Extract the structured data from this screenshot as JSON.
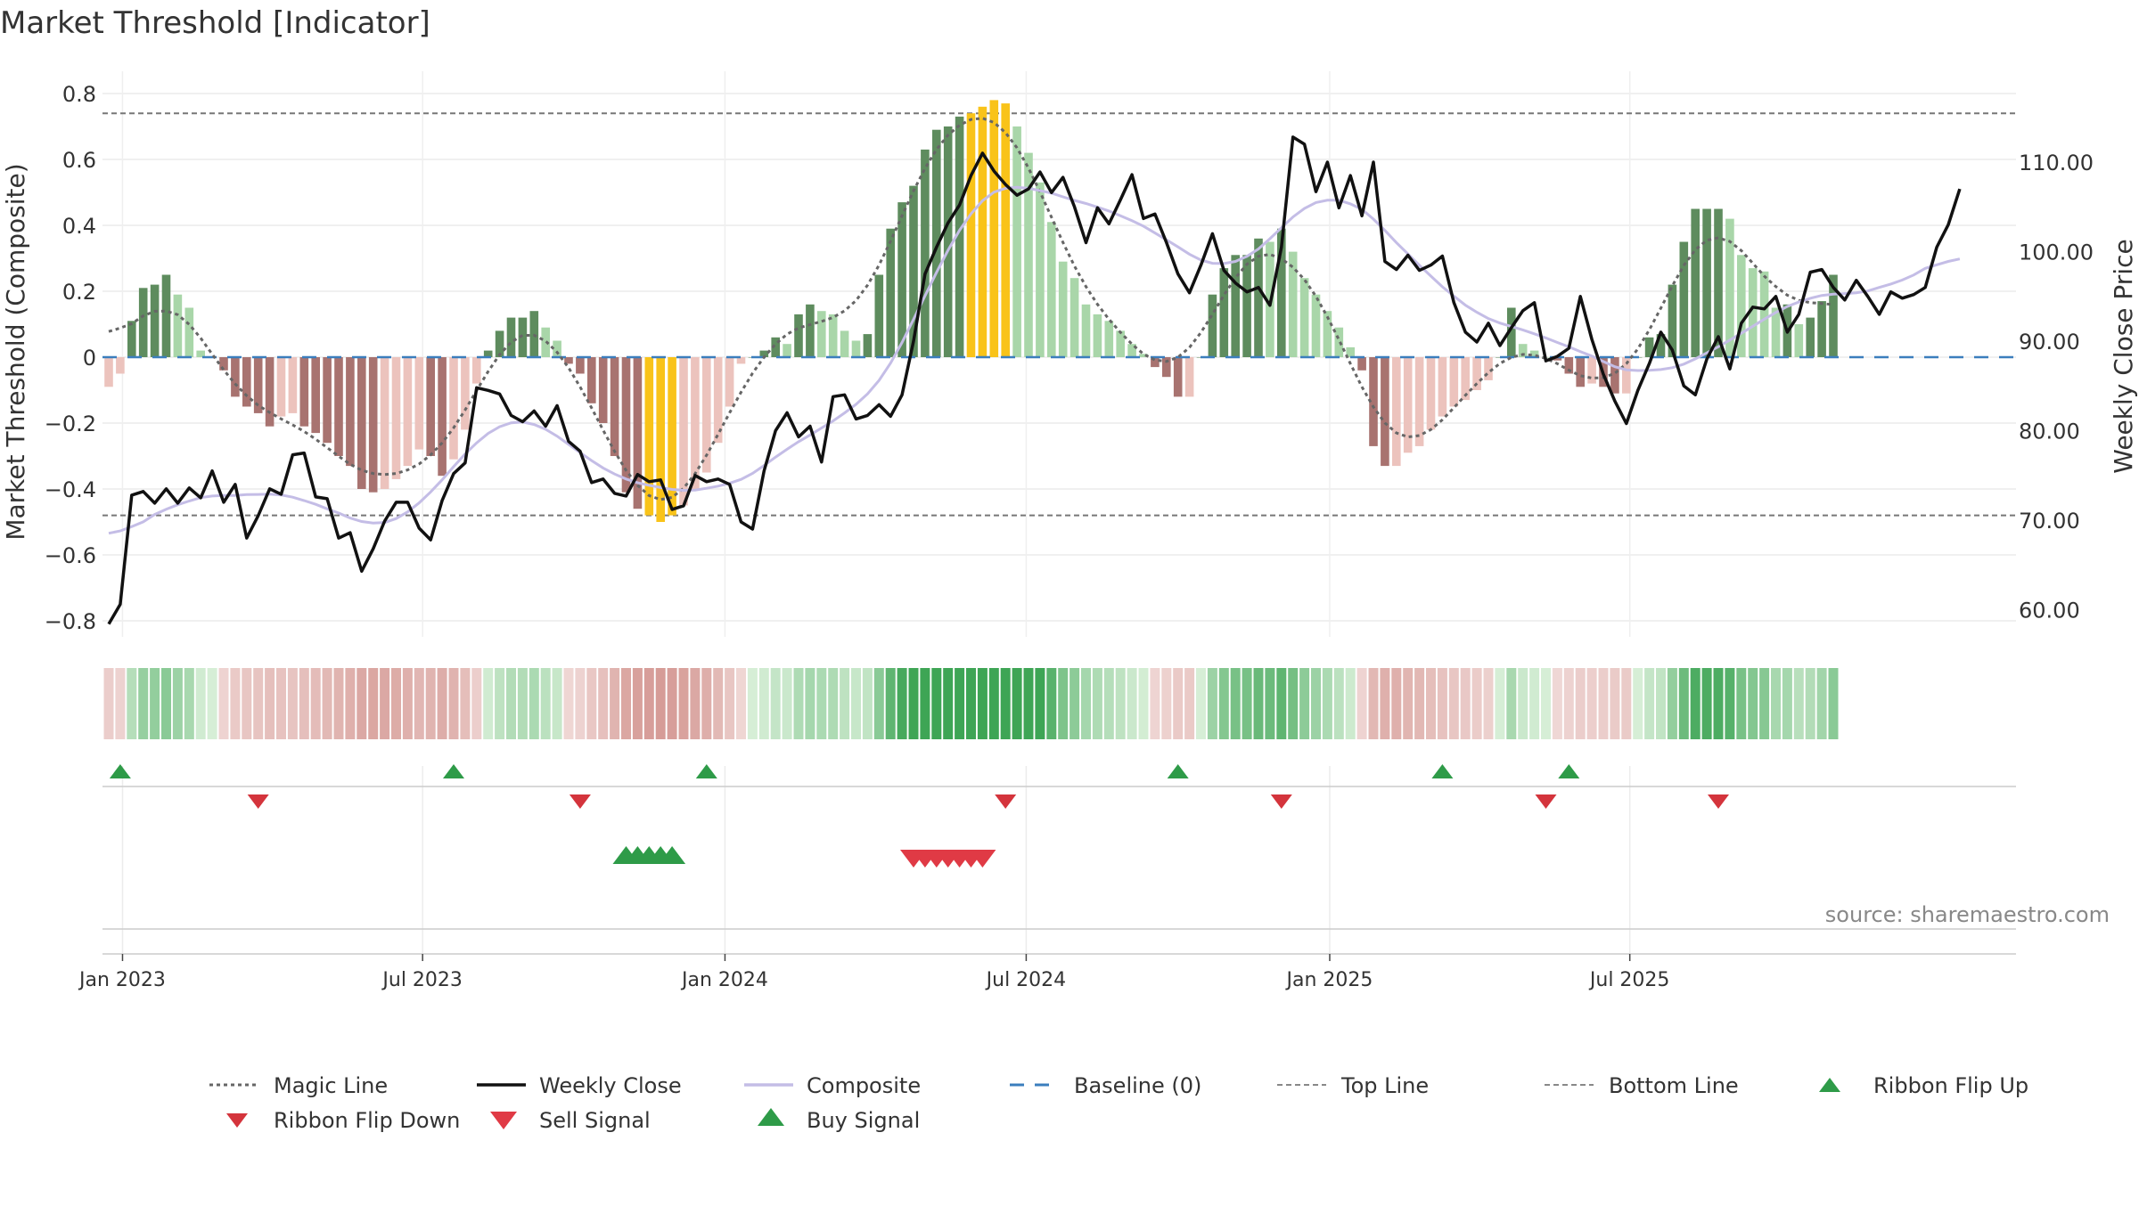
{
  "chart_data": {
    "type": "bar",
    "title": "Market Threshold [Indicator]",
    "ylabel_left": "Market Threshold (Composite)",
    "ylabel_right": "Weekly Close Price",
    "source": "source: sharemaestro.com",
    "ylim_left": [
      -0.85,
      0.85
    ],
    "ylim_right": [
      54.7,
      119.0
    ],
    "y_ticks_left": [
      {
        "v": 0.8,
        "label": "0.8"
      },
      {
        "v": 0.6,
        "label": "0.6"
      },
      {
        "v": 0.4,
        "label": "0.4"
      },
      {
        "v": 0.2,
        "label": "0.2"
      },
      {
        "v": 0,
        "label": "0"
      },
      {
        "v": -0.2,
        "label": "−0.2"
      },
      {
        "v": -0.4,
        "label": "−0.4"
      },
      {
        "v": -0.6,
        "label": "−0.6"
      },
      {
        "v": -0.8,
        "label": "−0.8"
      }
    ],
    "y_ticks_right": [
      {
        "v": 110,
        "label": "110.00"
      },
      {
        "v": 100,
        "label": "100.00"
      },
      {
        "v": 90,
        "label": "90.00"
      },
      {
        "v": 80,
        "label": "80.00"
      },
      {
        "v": 70,
        "label": "70.00"
      },
      {
        "v": 60,
        "label": "60.00"
      }
    ],
    "x_ticks": [
      {
        "w": 1.2,
        "label": "Jan 2023"
      },
      {
        "w": 27.3,
        "label": "Jul 2023"
      },
      {
        "w": 53.6,
        "label": "Jan 2024"
      },
      {
        "w": 79.8,
        "label": "Jul 2024"
      },
      {
        "w": 106.2,
        "label": "Jan 2025"
      },
      {
        "w": 132.3,
        "label": "Jul 2025"
      }
    ],
    "top_line": 0.74,
    "bottom_line": -0.48,
    "baseline": 0,
    "composite_bars": [
      -0.09,
      -0.05,
      0.11,
      0.21,
      0.22,
      0.25,
      0.19,
      0.15,
      0.02,
      0,
      -0.04,
      -0.12,
      -0.15,
      -0.17,
      -0.21,
      -0.18,
      -0.17,
      -0.21,
      -0.23,
      -0.26,
      -0.3,
      -0.33,
      -0.4,
      -0.41,
      -0.4,
      -0.37,
      -0.33,
      -0.28,
      -0.3,
      -0.36,
      -0.31,
      -0.22,
      -0.08,
      0.02,
      0.08,
      0.12,
      0.12,
      0.14,
      0.09,
      0.05,
      -0.02,
      -0.05,
      -0.14,
      -0.2,
      -0.3,
      -0.41,
      -0.46,
      -0.48,
      -0.5,
      -0.48,
      -0.45,
      -0.4,
      -0.35,
      -0.26,
      -0.15,
      -0.02,
      0,
      0.02,
      0.06,
      0.04,
      0.13,
      0.16,
      0.14,
      0.13,
      0.08,
      0.05,
      0.07,
      0.25,
      0.39,
      0.47,
      0.52,
      0.63,
      0.69,
      0.7,
      0.73,
      0.74,
      0.76,
      0.78,
      0.77,
      0.7,
      0.62,
      0.53,
      0.41,
      0.29,
      0.24,
      0.16,
      0.13,
      0.11,
      0.08,
      0.04,
      0.01,
      -0.03,
      -0.06,
      -0.12,
      -0.12,
      0,
      0.19,
      0.27,
      0.31,
      0.31,
      0.36,
      0.35,
      0.39,
      0.32,
      0.24,
      0.19,
      0.14,
      0.09,
      0.03,
      -0.04,
      -0.27,
      -0.33,
      -0.33,
      -0.29,
      -0.27,
      -0.22,
      -0.18,
      -0.15,
      -0.13,
      -0.1,
      -0.07,
      0,
      0.15,
      0.04,
      0.02,
      0,
      -0.01,
      -0.05,
      -0.09,
      -0.08,
      -0.09,
      -0.11,
      -0.11,
      0,
      0.06,
      0.07,
      0.22,
      0.35,
      0.45,
      0.45,
      0.45,
      0.42,
      0.31,
      0.27,
      0.26,
      0.15,
      0.16,
      0.1,
      0.12,
      0.17,
      0.25
    ],
    "weekly_close": [
      58.4,
      60.6,
      72.8,
      73.2,
      71.9,
      73.5,
      71.9,
      73.6,
      72.5,
      75.5,
      72.0,
      74.0,
      68.0,
      70.5,
      73.5,
      72.9,
      77.3,
      77.5,
      72.6,
      72.4,
      68.0,
      68.6,
      64.3,
      66.8,
      69.9,
      72.0,
      72.0,
      69.1,
      67.8,
      72.2,
      75.2,
      76.4,
      84.8,
      84.5,
      84.1,
      81.7,
      81.0,
      82.2,
      80.5,
      82.8,
      78.8,
      77.7,
      74.2,
      74.6,
      73.0,
      72.7,
      75.1,
      74.3,
      74.5,
      71.2,
      71.6,
      75.0,
      74.3,
      74.6,
      74.0,
      69.8,
      69.0,
      75.5,
      80.0,
      82.0,
      79.3,
      80.5,
      76.5,
      83.8,
      84.0,
      81.3,
      81.7,
      82.9,
      81.6,
      84.0,
      90.0,
      97.5,
      100.5,
      103.2,
      105.2,
      108.5,
      111.0,
      109.0,
      107.5,
      106.3,
      107.0,
      108.9,
      106.6,
      108.3,
      105.0,
      101.0,
      104.9,
      103.1,
      105.8,
      108.6,
      103.7,
      104.2,
      101.0,
      97.5,
      95.4,
      98.5,
      102.0,
      97.9,
      96.5,
      95.5,
      96.0,
      94.0,
      100.5,
      112.8,
      112.0,
      106.7,
      110.0,
      104.9,
      108.5,
      104.0,
      110.0,
      98.9,
      98.0,
      99.6,
      97.9,
      98.5,
      99.5,
      94.3,
      91.0,
      89.9,
      92.0,
      89.5,
      91.5,
      93.4,
      94.3,
      87.8,
      88.3,
      89.2,
      95.0,
      90.2,
      86.3,
      83.3,
      80.8,
      84.5,
      87.5,
      91.0,
      89.0,
      85.0,
      84.0,
      88.0,
      90.5,
      86.9,
      92.0,
      93.8,
      93.6,
      95.0,
      91.0,
      93.0,
      97.7,
      98.0,
      96.0,
      94.6,
      96.8,
      95.0,
      93.0,
      95.5,
      94.8,
      95.2,
      96.0,
      100.5,
      103.0,
      107.0
    ]
  },
  "legend": {
    "magic_line": "Magic Line",
    "weekly_close": "Weekly Close",
    "composite": "Composite",
    "baseline": "Baseline (0)",
    "top_line": "Top Line",
    "bottom_line": "Bottom Line",
    "ribbon_flip_up": "Ribbon Flip Up",
    "ribbon_flip_down": "Ribbon Flip Down",
    "sell_signal": "Sell Signal",
    "buy_signal": "Buy Signal"
  },
  "signals": {
    "ribbon_flip_up_weeks": [
      1,
      30,
      52,
      93,
      116,
      127
    ],
    "ribbon_flip_down_weeks": [
      13,
      41,
      78,
      102,
      125,
      140
    ],
    "buy_signal_weeks": [
      45,
      46,
      47,
      48,
      49
    ],
    "sell_signal_weeks": [
      70,
      71,
      72,
      73,
      74,
      75,
      76
    ]
  },
  "colors": {
    "strong_pos": "#5e8c5e",
    "weak_pos": "#a9d6a9",
    "strong_neg": "#a87370",
    "weak_neg": "#ecc3bd",
    "extreme": "#f9c319",
    "weekly_close": "#111111",
    "composite_line": "#c4bde6",
    "magic_line": "#666666",
    "baseline": "#3b7ebd",
    "threshold": "#777777",
    "up_marker": "#2e9b48",
    "down_marker": "#d4343c"
  }
}
